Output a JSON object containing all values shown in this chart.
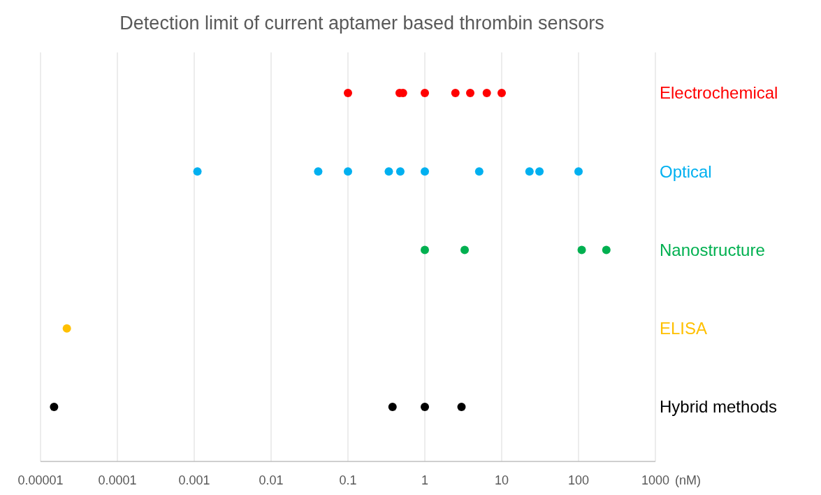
{
  "chart_data": {
    "type": "scatter",
    "title": "Detection limit of current aptamer based thrombin sensors",
    "orientation": "horizontal",
    "log": "x",
    "xlabel": "(nM)",
    "categories": [
      "Electrochemical",
      "Optical",
      "Nanostructure",
      "ELISA",
      "Hybrid methods"
    ],
    "xlim": [
      1e-05,
      1000
    ],
    "xticks": [
      {
        "value": 1e-05,
        "label": "0.00001"
      },
      0.0001,
      0.001,
      0.01,
      0.1,
      1,
      10,
      100,
      1000
    ],
    "grid": "x",
    "marker": "circle",
    "series": [
      {
        "color": "#ff0000",
        "x": [
          "Electrochemical",
          "Electrochemical",
          "Electrochemical",
          "Electrochemical",
          "Electrochemical",
          "Electrochemical",
          "Electrochemical",
          "Electrochemical"
        ],
        "values": [
          0.1,
          0.47,
          0.52,
          1,
          2.5,
          3.9,
          6.4,
          10
        ]
      },
      {
        "color": "#00b0f0",
        "x": [
          "Optical",
          "Optical",
          "Optical",
          "Optical",
          "Optical",
          "Optical",
          "Optical",
          "Optical",
          "Optical",
          "Optical"
        ],
        "values": [
          0.0011,
          0.041,
          0.1,
          0.34,
          0.48,
          1,
          5.1,
          23,
          31,
          100
        ]
      },
      {
        "color": "#00b050",
        "x": [
          "Nanostructure",
          "Nanostructure",
          "Nanostructure",
          "Nanostructure"
        ],
        "values": [
          1,
          3.3,
          110,
          230
        ]
      },
      {
        "color": "#ffc000",
        "x": [
          "ELISA"
        ],
        "values": [
          2.2e-05
        ]
      },
      {
        "color": "#000000",
        "x": [
          "Hybrid methods",
          "Hybrid methods",
          "Hybrid methods",
          "Hybrid methods"
        ],
        "values": [
          1.5e-05,
          0.38,
          1,
          3
        ]
      }
    ]
  }
}
